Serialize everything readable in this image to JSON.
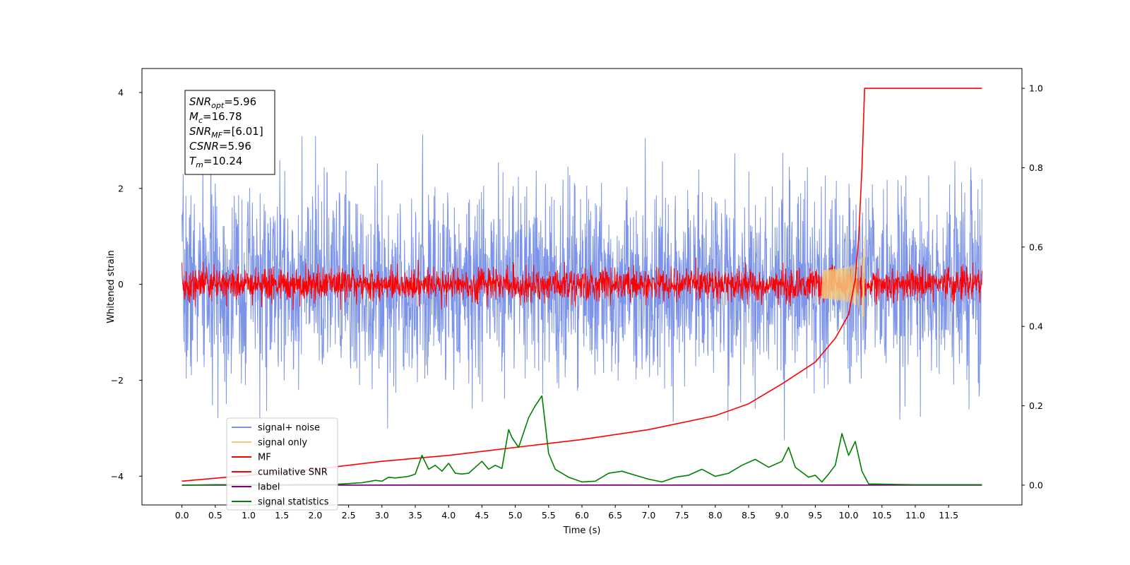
{
  "chart_data": {
    "type": "line",
    "title": "",
    "xlabel": "Time (s)",
    "ylabel": "Whitened strain",
    "xlim": [
      -0.6,
      12.6
    ],
    "ylim": [
      -4.6,
      4.5
    ],
    "ylim_right": [
      -0.05,
      1.05
    ],
    "x_ticks": [
      "0.0",
      "0.5",
      "1.0",
      "1.5",
      "2.0",
      "2.5",
      "3.0",
      "3.5",
      "4.0",
      "4.5",
      "5.0",
      "5.5",
      "6.0",
      "6.5",
      "7.0",
      "7.5",
      "8.0",
      "8.5",
      "9.0",
      "9.5",
      "10.0",
      "10.5",
      "11.0",
      "11.5"
    ],
    "y_ticks_left": [
      "4",
      "2",
      "0",
      "−2",
      "−4"
    ],
    "y_ticks_right": [
      "1.0",
      "0.8",
      "0.6",
      "0.4",
      "0.2",
      "0.0"
    ],
    "grid": false,
    "legend_position": "lower-left",
    "annotation": [
      {
        "main": "SNR",
        "sub": "opt",
        "rest": "=5.96"
      },
      {
        "main": "M",
        "sub": "c",
        "rest": "=16.78"
      },
      {
        "main": "SNR",
        "sub": "MF",
        "rest": "=[6.01]"
      },
      {
        "main": "CSNR",
        "sub": "",
        "rest": "=5.96"
      },
      {
        "main": "T",
        "sub": "m",
        "rest": "=10.24"
      }
    ],
    "series": [
      {
        "name": "signal+ noise",
        "axis": "left",
        "color": "#7b93e8",
        "style": "noise",
        "x_range": [
          0.0,
          12.0
        ],
        "amplitude_std": 1.0,
        "amplitude_peak": 4.05
      },
      {
        "name": "signal only",
        "axis": "left",
        "color": "#f5c97a",
        "style": "chirp",
        "x_range": [
          9.6,
          10.24
        ],
        "amplitude_peak": 1.05,
        "merger_time": 10.24
      },
      {
        "name": "MF",
        "axis": "left",
        "color": "#ff0000",
        "style": "noise",
        "x_range": [
          0.0,
          12.0
        ],
        "amplitude_std": 0.17,
        "amplitude_peak": 1.0
      },
      {
        "name": "cumilative SNR",
        "axis": "right",
        "color": "#ff0000",
        "style": "line",
        "x": [
          0.0,
          1.0,
          2.0,
          3.0,
          4.0,
          5.0,
          6.0,
          7.0,
          8.0,
          8.5,
          9.0,
          9.5,
          9.8,
          10.0,
          10.1,
          10.15,
          10.2,
          10.24,
          12.0
        ],
        "y": [
          0.01,
          0.025,
          0.04,
          0.06,
          0.075,
          0.095,
          0.115,
          0.14,
          0.175,
          0.205,
          0.255,
          0.31,
          0.37,
          0.43,
          0.52,
          0.62,
          0.8,
          1.0,
          1.0
        ]
      },
      {
        "name": "label",
        "axis": "right",
        "color": "#800080",
        "style": "line",
        "x": [
          0.0,
          12.0
        ],
        "y": [
          0.0,
          0.0
        ]
      },
      {
        "name": "signal statistics",
        "axis": "right",
        "color": "#008000",
        "style": "line",
        "x": [
          0.0,
          0.5,
          1.0,
          1.5,
          2.0,
          2.3,
          2.5,
          2.7,
          2.9,
          3.0,
          3.1,
          3.2,
          3.4,
          3.5,
          3.6,
          3.7,
          3.8,
          3.9,
          4.0,
          4.1,
          4.2,
          4.3,
          4.5,
          4.6,
          4.7,
          4.8,
          4.9,
          4.95,
          5.05,
          5.2,
          5.3,
          5.4,
          5.5,
          5.6,
          5.8,
          6.0,
          6.2,
          6.4,
          6.6,
          6.8,
          7.0,
          7.2,
          7.4,
          7.6,
          7.8,
          8.0,
          8.2,
          8.4,
          8.6,
          8.8,
          9.0,
          9.1,
          9.2,
          9.4,
          9.5,
          9.6,
          9.7,
          9.8,
          9.9,
          10.0,
          10.1,
          10.2,
          10.3,
          11.0,
          12.0
        ],
        "y": [
          0.0,
          0.001,
          0.001,
          0.001,
          0.002,
          0.002,
          0.004,
          0.006,
          0.012,
          0.01,
          0.02,
          0.018,
          0.022,
          0.028,
          0.075,
          0.04,
          0.05,
          0.035,
          0.055,
          0.03,
          0.028,
          0.03,
          0.06,
          0.04,
          0.05,
          0.042,
          0.14,
          0.12,
          0.095,
          0.17,
          0.2,
          0.225,
          0.08,
          0.04,
          0.02,
          0.008,
          0.01,
          0.03,
          0.035,
          0.025,
          0.015,
          0.008,
          0.02,
          0.025,
          0.04,
          0.022,
          0.03,
          0.05,
          0.065,
          0.045,
          0.06,
          0.095,
          0.045,
          0.02,
          0.025,
          0.008,
          0.028,
          0.05,
          0.13,
          0.075,
          0.11,
          0.035,
          0.003,
          0.001,
          0.001
        ]
      }
    ]
  }
}
